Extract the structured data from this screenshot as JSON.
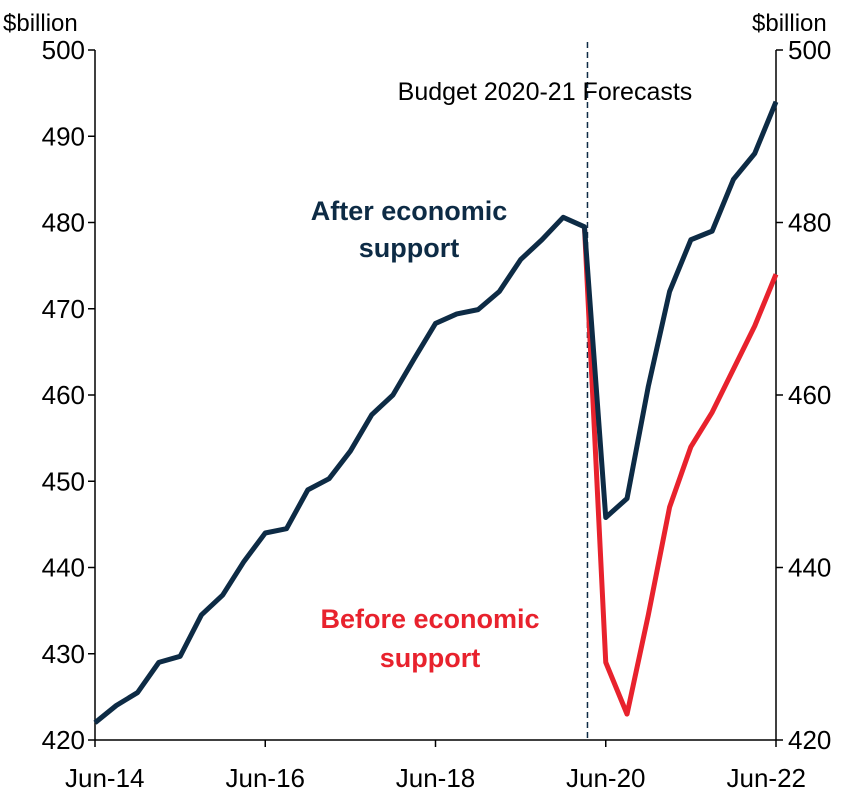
{
  "chart_data": {
    "type": "line",
    "x": [
      "Jun-14",
      "Sep-14",
      "Dec-14",
      "Mar-15",
      "Jun-15",
      "Sep-15",
      "Dec-15",
      "Mar-16",
      "Jun-16",
      "Sep-16",
      "Dec-16",
      "Mar-17",
      "Jun-17",
      "Sep-17",
      "Dec-17",
      "Mar-18",
      "Jun-18",
      "Sep-18",
      "Dec-18",
      "Mar-19",
      "Jun-19",
      "Sep-19",
      "Dec-19",
      "Mar-20",
      "Jun-20",
      "Sep-20",
      "Dec-20",
      "Mar-21",
      "Jun-21",
      "Sep-21",
      "Dec-21",
      "Mar-22",
      "Jun-22"
    ],
    "x_tick_labels": [
      "Jun-14",
      "Jun-16",
      "Jun-18",
      "Jun-20",
      "Jun-22"
    ],
    "series": [
      {
        "name": "After economic support",
        "color": "#0d2b45",
        "values": [
          422.0,
          424.0,
          425.5,
          429.0,
          429.7,
          434.5,
          436.8,
          440.7,
          444.0,
          444.5,
          449.0,
          450.3,
          453.5,
          457.7,
          460.0,
          464.2,
          468.3,
          469.4,
          469.9,
          472.0,
          475.7,
          478.0,
          480.6,
          479.5,
          445.8,
          448.0,
          461.0,
          472.0,
          478.0,
          479.0,
          485.0,
          488.0,
          494.0
        ]
      },
      {
        "name": "Before economic support",
        "color": "#e8222d",
        "values": [
          null,
          null,
          null,
          null,
          null,
          null,
          null,
          null,
          null,
          null,
          null,
          null,
          null,
          null,
          null,
          null,
          null,
          null,
          null,
          null,
          null,
          null,
          null,
          479.5,
          429.0,
          423.0,
          434.5,
          447.0,
          454.0,
          458.0,
          463.0,
          468.0,
          474.0
        ]
      }
    ],
    "left_axis": {
      "unit": "$billion",
      "ylim": [
        420,
        500
      ],
      "ticks": [
        420,
        430,
        440,
        450,
        460,
        470,
        480,
        490,
        500
      ]
    },
    "right_axis": {
      "unit": "$billion",
      "ylim": [
        420,
        500
      ],
      "ticks": [
        420,
        440,
        460,
        480,
        500
      ]
    },
    "annotations": {
      "forecast_label": "Budget 2020-21 Forecasts",
      "forecast_divider_x": "Mar-20",
      "after_label_line1": "After economic",
      "after_label_line2": "support",
      "before_label_line1": "Before economic",
      "before_label_line2": "support"
    },
    "grid": false
  }
}
